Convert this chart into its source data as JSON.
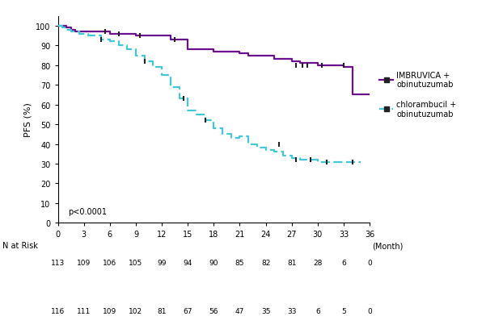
{
  "title": "",
  "ylabel": "PFS (%)",
  "xlim": [
    0,
    36
  ],
  "ylim": [
    0,
    105
  ],
  "yticks": [
    0,
    10,
    20,
    30,
    40,
    50,
    60,
    70,
    80,
    90,
    100
  ],
  "xticks": [
    0,
    3,
    6,
    9,
    12,
    15,
    18,
    21,
    24,
    27,
    30,
    33,
    36
  ],
  "pvalue": "p<0.0001",
  "background_color": "#ffffff",
  "imbruvica_color": "#6A0F8E",
  "chlorambucil_color": "#40C8D8",
  "imbruvica_steps_x": [
    0,
    1,
    1.5,
    2,
    3,
    4,
    5,
    6,
    7,
    8,
    9,
    10,
    11,
    12,
    13,
    14,
    15,
    16,
    17,
    18,
    19,
    20,
    21,
    22,
    23,
    24,
    25,
    26,
    27,
    28,
    29,
    30,
    31,
    32,
    33,
    34,
    35,
    36
  ],
  "imbruvica_steps_y": [
    100,
    99,
    98,
    97,
    97,
    97,
    97,
    96,
    96,
    96,
    95,
    95,
    95,
    95,
    93,
    93,
    88,
    88,
    88,
    87,
    87,
    87,
    86,
    85,
    85,
    85,
    83,
    83,
    82,
    81,
    81,
    80,
    80,
    80,
    79,
    65,
    65,
    65
  ],
  "chlorambucil_steps_x": [
    0,
    0.5,
    1,
    1.5,
    2,
    2.5,
    3,
    3.5,
    4,
    5,
    6,
    7,
    8,
    9,
    10,
    11,
    12,
    13,
    14,
    15,
    16,
    17,
    18,
    19,
    20,
    21,
    22,
    23,
    24,
    25,
    26,
    27,
    28,
    29,
    30,
    31,
    32,
    33,
    34,
    35
  ],
  "chlorambucil_steps_y": [
    100,
    99,
    98,
    97,
    97,
    96,
    96,
    95,
    95,
    93,
    92,
    90,
    88,
    85,
    82,
    79,
    75,
    69,
    63,
    57,
    55,
    52,
    48,
    45,
    43,
    44,
    40,
    38,
    37,
    36,
    34,
    33,
    32,
    32,
    31,
    31,
    31,
    31,
    31,
    31
  ],
  "imbruvica_censors": [
    [
      5.5,
      97
    ],
    [
      7,
      96
    ],
    [
      9.5,
      95
    ],
    [
      13.5,
      93
    ],
    [
      27.5,
      80
    ],
    [
      28.2,
      80
    ],
    [
      28.8,
      80
    ],
    [
      30.5,
      80
    ],
    [
      33,
      80
    ]
  ],
  "chlorambucil_censors": [
    [
      5,
      93
    ],
    [
      10,
      82
    ],
    [
      14.5,
      63
    ],
    [
      17,
      52
    ],
    [
      25.5,
      40
    ],
    [
      27.5,
      32
    ],
    [
      29.2,
      32
    ],
    [
      31,
      31
    ],
    [
      34,
      31
    ]
  ],
  "legend_imbruvica": "IMBRUVICA +\nobinutuzumab",
  "legend_chlorambucil": "chlorambucil +\nobinutuzumab",
  "natrisk_label": "N at Risk",
  "imbruvica_natrisk": [
    113,
    109,
    106,
    105,
    99,
    94,
    90,
    85,
    82,
    81,
    28,
    6,
    0
  ],
  "chlorambucil_natrisk": [
    116,
    111,
    109,
    102,
    81,
    67,
    56,
    47,
    35,
    33,
    6,
    5,
    0
  ],
  "natrisk_xticks": [
    0,
    3,
    6,
    9,
    12,
    15,
    18,
    21,
    24,
    27,
    30,
    33,
    36
  ]
}
